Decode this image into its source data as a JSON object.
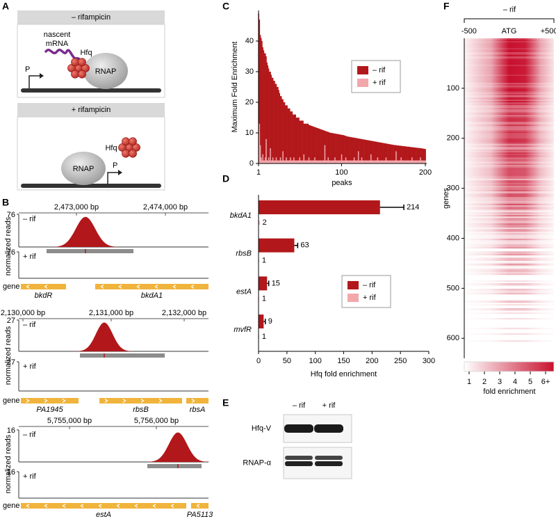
{
  "panels": {
    "A": {
      "label": "A",
      "minus_title": "– rifampicin",
      "plus_title": "+ rifampicin",
      "nascent": "nascent",
      "mrna": "mRNA",
      "hfq": "Hfq",
      "rnap": "RNAP",
      "promoter": "P"
    },
    "B": {
      "label": "B",
      "ylabel": "normalized reads",
      "gene_label": "gene",
      "minus": "– rif",
      "plus": "+ rif",
      "tracks": [
        {
          "coords": [
            "2,473,000 bp",
            "2,474,000 bp"
          ],
          "minus_max": 76,
          "plus_max": 76,
          "genes": [
            "bkdR",
            "bkdA1"
          ]
        },
        {
          "coords": [
            "2,130,000 bp",
            "2,131,000 bp",
            "2,132,000 bp"
          ],
          "minus_max": 27,
          "plus_max": 27,
          "genes": [
            "PA1945",
            "rbsB",
            "rbsA"
          ]
        },
        {
          "coords": [
            "5,755,000 bp",
            "5,756,000 bp"
          ],
          "minus_max": 16,
          "plus_max": 16,
          "genes": [
            "estA",
            "PA5113"
          ]
        }
      ]
    },
    "E": {
      "label": "E",
      "columns": [
        "– rif",
        "+ rif"
      ],
      "rows": [
        "Hfq-V",
        "RNAP-α"
      ]
    },
    "F": {
      "label": "F",
      "title": "– rif",
      "xlim": [
        -560,
        560
      ],
      "xticks": [
        -500,
        {
          "value": 0,
          "label": "ATG"
        },
        {
          "value": 500,
          "label": "+500"
        }
      ],
      "ylabel": "genes",
      "ylim": [
        0,
        640
      ],
      "yticks": [
        100,
        200,
        300,
        400,
        500,
        600
      ],
      "colorbar_ticks": [
        1,
        2,
        3,
        4,
        5,
        {
          "value": 6,
          "label": "6+"
        }
      ],
      "colorbar_label": "fold enrichment",
      "color": "#c8102e"
    }
  },
  "chart_data": [
    {
      "type": "bar",
      "panel": "C",
      "ylabel": "Maximum Fold Enrichment",
      "xlabel": "peaks",
      "xlim": [
        1,
        200
      ],
      "xticks": [
        1,
        100,
        200
      ],
      "ylim": [
        0,
        50
      ],
      "yticks": [
        0,
        10,
        20,
        30,
        40
      ],
      "legend": "upper right",
      "x": [
        1,
        2,
        3,
        4,
        5,
        6,
        7,
        8,
        9,
        10,
        11,
        12,
        13,
        14,
        15,
        16,
        17,
        18,
        19,
        20,
        21,
        22,
        23,
        24,
        25,
        26,
        27,
        28,
        29,
        30,
        31,
        32,
        33,
        34,
        35,
        36,
        37,
        38,
        39,
        40,
        41,
        42,
        43,
        44,
        45,
        46,
        47,
        48,
        49,
        50,
        51,
        52,
        53,
        54,
        55,
        56,
        57,
        58,
        59,
        60,
        61,
        62,
        63,
        64,
        65,
        66,
        67,
        68,
        69,
        70,
        71,
        72,
        73,
        74,
        75,
        76,
        77,
        78,
        79,
        80,
        81,
        82,
        83,
        84,
        85,
        86,
        87,
        88,
        89,
        90,
        91,
        92,
        93,
        94,
        95,
        96,
        97,
        98,
        99,
        100,
        101,
        102,
        103,
        104,
        105,
        106,
        107,
        108,
        109,
        110,
        111,
        112,
        113,
        114,
        115,
        116,
        117,
        118,
        119,
        120,
        121,
        122,
        123,
        124,
        125,
        126,
        127,
        128,
        129,
        130,
        131,
        132,
        133,
        134,
        135,
        136,
        137,
        138,
        139,
        140,
        141,
        142,
        143,
        144,
        145,
        146,
        147,
        148,
        149,
        150,
        151,
        152,
        153,
        154,
        155,
        156,
        157,
        158,
        159,
        160,
        161,
        162,
        163,
        164,
        165,
        166,
        167,
        168,
        169,
        170,
        171,
        172,
        173,
        174,
        175,
        176,
        177,
        178,
        179,
        180,
        181,
        182,
        183,
        184,
        185,
        186,
        187,
        188,
        189,
        190,
        191,
        192,
        193,
        194,
        195,
        196,
        197,
        198,
        199,
        200
      ],
      "series": [
        {
          "name": "– rif",
          "color": "#b2181b",
          "values": [
            49,
            47,
            42,
            41,
            40,
            38,
            37,
            36,
            36,
            35,
            33,
            32,
            31,
            30,
            30,
            29,
            28,
            28,
            27,
            27,
            26,
            26,
            25,
            25,
            24,
            23,
            22,
            22,
            21,
            21,
            20,
            20,
            19,
            19,
            19,
            18,
            18,
            18,
            17,
            17,
            17,
            16,
            16,
            16,
            16,
            15,
            15,
            15,
            15,
            14,
            14,
            14,
            14,
            14,
            13,
            13,
            13,
            13,
            13,
            13,
            12.6,
            12.5,
            12.4,
            12.3,
            12.2,
            12.1,
            12,
            11.9,
            11.8,
            11.7,
            11.6,
            11.5,
            11.4,
            11.3,
            11.2,
            11.1,
            11,
            10.9,
            10.8,
            10.7,
            10.6,
            10.5,
            10.4,
            10.3,
            10.2,
            10.1,
            10,
            10,
            9.9,
            9.9,
            9.8,
            9.8,
            9.7,
            9.7,
            9.6,
            9.6,
            9.5,
            9.5,
            9.4,
            9.4,
            9.3,
            9.3,
            9.2,
            9.1,
            9,
            8.9,
            8.8,
            8.8,
            8.7,
            8.7,
            8.6,
            8.6,
            8.5,
            8.5,
            8.4,
            8.4,
            8.3,
            8.3,
            8.2,
            8.2,
            8.1,
            8.1,
            8,
            8,
            7.9,
            7.9,
            7.8,
            7.8,
            7.7,
            7.7,
            7.6,
            7.6,
            7.5,
            7.5,
            7.4,
            7.4,
            7.3,
            7.3,
            7.2,
            7.2,
            7.1,
            7.1,
            7,
            7,
            6.9,
            6.9,
            6.8,
            6.8,
            6.7,
            6.7,
            6.6,
            6.6,
            6.5,
            6.5,
            6.4,
            6.4,
            6.3,
            6.3,
            6.2,
            6.2,
            6.1,
            6.1,
            6,
            6,
            6,
            5.9,
            5.9,
            5.9,
            5.8,
            5.8,
            5.8,
            5.7,
            5.7,
            5.7,
            5.6,
            5.6,
            5.6,
            5.5,
            5.5,
            5.5,
            5.4,
            5.4,
            5.4,
            5.3,
            5.3,
            5.3,
            5.2,
            5.2,
            5.2,
            5.1,
            5.1,
            5.1,
            5,
            5,
            5,
            4.9,
            4.9,
            4.8,
            4.8,
            4.7
          ]
        },
        {
          "name": "+ rif",
          "color": "#f2a7ab",
          "values": [
            11,
            13,
            6,
            2,
            1,
            3,
            1,
            1,
            2,
            8,
            1,
            1,
            2,
            1,
            5,
            1,
            1,
            2,
            1,
            1,
            1,
            2,
            1,
            1,
            1,
            1,
            2,
            1,
            1,
            4,
            1,
            1,
            1,
            2,
            1,
            1,
            1,
            1,
            2,
            1,
            1,
            1,
            2,
            1,
            1,
            1,
            1,
            1,
            1,
            2,
            1,
            1,
            1,
            1,
            3,
            1,
            1,
            1,
            1,
            1,
            2,
            1,
            1,
            1,
            1,
            1,
            1,
            2,
            1,
            1,
            1,
            1,
            1,
            1,
            1,
            1,
            1,
            1,
            1,
            6,
            1,
            1,
            1,
            2,
            1,
            1,
            1,
            1,
            1,
            1,
            1,
            2,
            1,
            1,
            1,
            1,
            1,
            1,
            1,
            3,
            1,
            1,
            1,
            1,
            2,
            1,
            1,
            1,
            1,
            1,
            1,
            1,
            1,
            1,
            2,
            1,
            1,
            1,
            1,
            4,
            1,
            1,
            1,
            2,
            1,
            1,
            1,
            1,
            1,
            1,
            1,
            1,
            1,
            1,
            3,
            1,
            1,
            1,
            1,
            1,
            1,
            1,
            2,
            1,
            1,
            1,
            1,
            1,
            1,
            1,
            1,
            1,
            2,
            1,
            1,
            1,
            1,
            1,
            1,
            1,
            1,
            1,
            1,
            1,
            4,
            1,
            1,
            1,
            1,
            1,
            2,
            1,
            1,
            1,
            1,
            1,
            1,
            1,
            1,
            1,
            1,
            1,
            1,
            2,
            1,
            1,
            1,
            1,
            1,
            1,
            1,
            1,
            1,
            2,
            1,
            1,
            1,
            1,
            1,
            1
          ]
        }
      ]
    },
    {
      "type": "hbar",
      "panel": "D",
      "xlabel": "Hfq fold enrichment",
      "xlim": [
        0,
        300
      ],
      "xticks": [
        0,
        50,
        100,
        150,
        200,
        250,
        300
      ],
      "legend": "center right",
      "categories": [
        "bkdA1",
        "rbsB",
        "estA",
        "mvfR"
      ],
      "series": [
        {
          "name": "– rif",
          "color": "#b2181b",
          "values": [
            214,
            63,
            15,
            9
          ],
          "errors": [
            42,
            6,
            3,
            3
          ]
        },
        {
          "name": "+ rif",
          "color": "#f2a7ab",
          "values": [
            2,
            1,
            1,
            1
          ]
        }
      ]
    }
  ]
}
